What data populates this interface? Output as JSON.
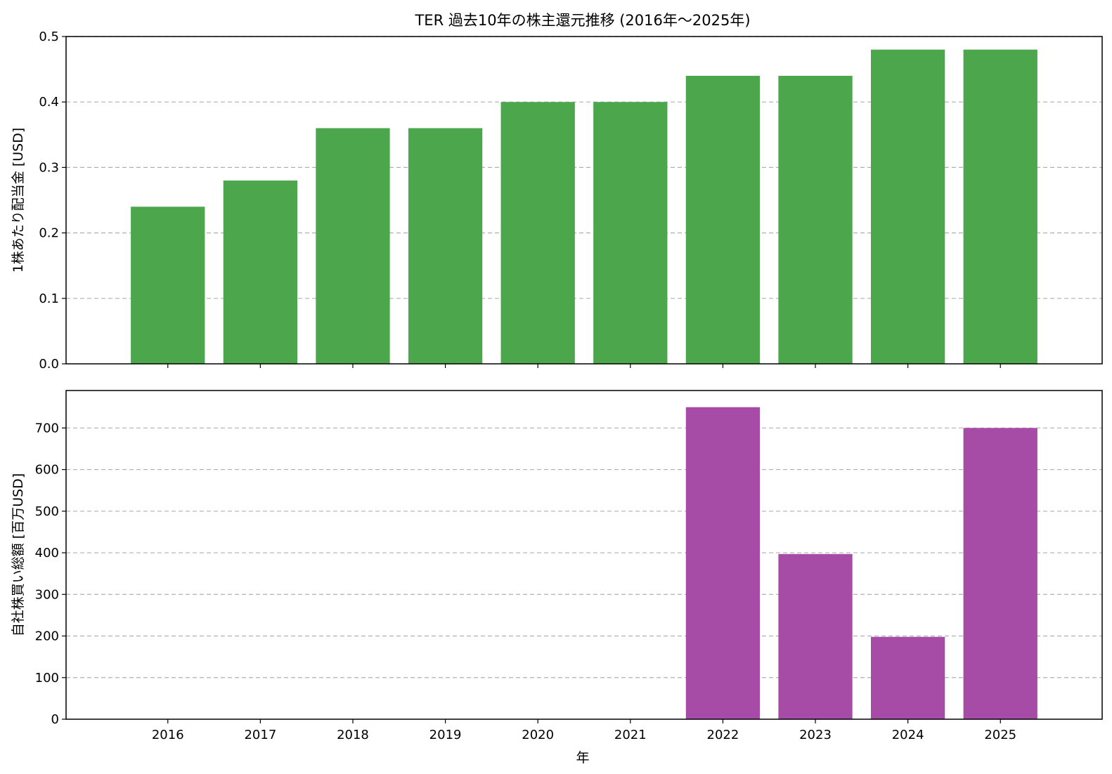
{
  "chart_data": {
    "title": "TER 過去10年の株主還元推移 (2016年～2025年)",
    "xlabel": "年",
    "categories": [
      "2016",
      "2017",
      "2018",
      "2019",
      "2020",
      "2021",
      "2022",
      "2023",
      "2024",
      "2025"
    ],
    "charts": [
      {
        "type": "bar",
        "ylabel": "1株あたり配当金 [USD]",
        "values": [
          0.24,
          0.28,
          0.36,
          0.36,
          0.4,
          0.4,
          0.44,
          0.44,
          0.48,
          0.48
        ],
        "ylim": [
          0,
          0.5
        ],
        "yticks": [
          "0.0",
          "0.1",
          "0.2",
          "0.3",
          "0.4",
          "0.5"
        ],
        "color": "#4ca64c",
        "grid": "y-dashed",
        "show_x_tick_labels": false
      },
      {
        "type": "bar",
        "ylabel": "自社株買い総額 [百万USD]",
        "values": [
          0,
          0,
          0,
          0,
          0,
          0,
          750,
          397,
          198,
          700
        ],
        "ylim": [
          0,
          790
        ],
        "yticks": [
          "0",
          "100",
          "200",
          "300",
          "400",
          "500",
          "600",
          "700"
        ],
        "color": "#a64ca6",
        "grid": "y-dashed",
        "show_x_tick_labels": true
      }
    ]
  }
}
